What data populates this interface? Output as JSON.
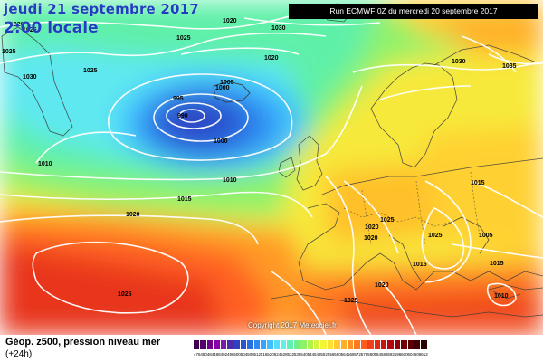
{
  "header": {
    "date": "jeudi 21 septembre 2017",
    "time": "2:00 locale",
    "run": "Run ECMWF 0Z du mercredi 20 septembre 2017"
  },
  "footer": {
    "title": "Géop. z500, pression niveau mer",
    "subtitle": "(+24h)",
    "copyright": "Copyright 2017 Meteociel.fr"
  },
  "scale": {
    "colors": [
      "#3d004a",
      "#53006b",
      "#6e0089",
      "#8a00a5",
      "#7a1aa8",
      "#4a2da6",
      "#2f3fbf",
      "#2a55d0",
      "#2a6fe0",
      "#2e8af0",
      "#33a4ff",
      "#3fc1ff",
      "#52dcff",
      "#5ff0e6",
      "#5ef0b4",
      "#6ff08a",
      "#8cf266",
      "#b0f44a",
      "#d4f53a",
      "#f3f535",
      "#ffe135",
      "#ffc92f",
      "#ffb02a",
      "#ff9426",
      "#ff7822",
      "#ff5c1e",
      "#f2401a",
      "#e02a16",
      "#c81512",
      "#b0060e",
      "#8f000a",
      "#700008",
      "#580006",
      "#400004",
      "#2a0002"
    ],
    "ticks": [
      "476",
      "480",
      "484",
      "488",
      "492",
      "496",
      "500",
      "504",
      "508",
      "512",
      "516",
      "520",
      "524",
      "528",
      "532",
      "536",
      "540",
      "544",
      "548",
      "552",
      "556",
      "560",
      "564",
      "568",
      "572",
      "576",
      "580",
      "584",
      "588",
      "592",
      "596",
      "600",
      "604",
      "608",
      "612"
    ]
  },
  "isobars": [
    "1020",
    "1025",
    "1030",
    "1025",
    "1020",
    "1030",
    "1025",
    "995",
    "990",
    "1005",
    "1000",
    "1000",
    "1010",
    "1010",
    "1015",
    "1020",
    "1025",
    "1020",
    "1025",
    "1030",
    "1035",
    "1015",
    "1025",
    "1020",
    "1020",
    "1015",
    "1005",
    "1025",
    "1015",
    "1020",
    "1025",
    "1010"
  ]
}
